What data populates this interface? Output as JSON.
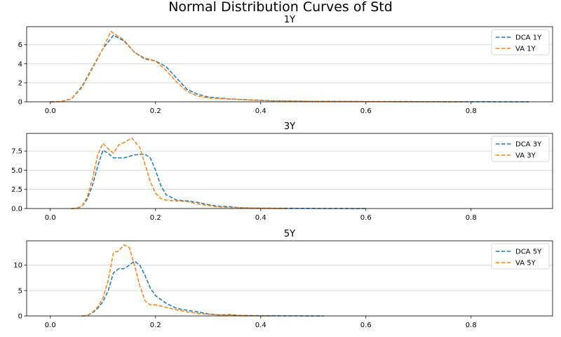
{
  "chart_data": {
    "type": "line",
    "title": "Normal Distribution Curves of Std",
    "grid": "y",
    "legend_placement": "top-right",
    "line_style": "dashed",
    "colors": {
      "DCA": "#1f77b4",
      "VA": "#ff7f0e"
    },
    "xlim": [
      -0.045,
      0.955
    ],
    "xticks": [
      "0.0",
      "0.2",
      "0.4",
      "0.6",
      "0.8"
    ],
    "panels": [
      {
        "title": "1Y",
        "ylim": [
          0,
          7.9
        ],
        "yticks": [
          "0",
          "2",
          "4",
          "6"
        ],
        "series": [
          {
            "name": "DCA 1Y",
            "color": "#1f77b4",
            "points": [
              [
                0.0,
                0
              ],
              [
                0.02,
                0.03
              ],
              [
                0.04,
                0.3
              ],
              [
                0.06,
                1.6
              ],
              [
                0.08,
                3.6
              ],
              [
                0.1,
                5.6
              ],
              [
                0.12,
                7.0
              ],
              [
                0.14,
                6.4
              ],
              [
                0.16,
                5.2
              ],
              [
                0.18,
                4.5
              ],
              [
                0.2,
                4.3
              ],
              [
                0.22,
                3.7
              ],
              [
                0.24,
                2.5
              ],
              [
                0.26,
                1.3
              ],
              [
                0.28,
                0.8
              ],
              [
                0.3,
                0.5
              ],
              [
                0.34,
                0.3
              ],
              [
                0.38,
                0.2
              ],
              [
                0.42,
                0.1
              ],
              [
                0.5,
                0.05
              ],
              [
                0.6,
                0.03
              ],
              [
                0.7,
                0.02
              ],
              [
                0.8,
                0.01
              ],
              [
                0.91,
                0.0
              ]
            ]
          },
          {
            "name": "VA 1Y",
            "color": "#ff7f0e",
            "points": [
              [
                0.0,
                0
              ],
              [
                0.02,
                0.03
              ],
              [
                0.04,
                0.3
              ],
              [
                0.06,
                1.5
              ],
              [
                0.08,
                3.5
              ],
              [
                0.1,
                5.6
              ],
              [
                0.115,
                7.4
              ],
              [
                0.14,
                6.5
              ],
              [
                0.16,
                5.2
              ],
              [
                0.18,
                4.6
              ],
              [
                0.2,
                4.3
              ],
              [
                0.22,
                3.3
              ],
              [
                0.24,
                2.1
              ],
              [
                0.26,
                1.1
              ],
              [
                0.28,
                0.6
              ],
              [
                0.3,
                0.4
              ],
              [
                0.34,
                0.3
              ],
              [
                0.38,
                0.2
              ],
              [
                0.42,
                0.1
              ],
              [
                0.5,
                0.05
              ],
              [
                0.6,
                0.02
              ],
              [
                0.7,
                0.01
              ],
              [
                0.79,
                0.0
              ]
            ]
          }
        ]
      },
      {
        "title": "3Y",
        "ylim": [
          0,
          9.8
        ],
        "yticks": [
          "0.0",
          "2.5",
          "5.0",
          "7.5"
        ],
        "series": [
          {
            "name": "DCA 3Y",
            "color": "#1f77b4",
            "points": [
              [
                0.04,
                0
              ],
              [
                0.05,
                0.05
              ],
              [
                0.06,
                0.3
              ],
              [
                0.07,
                1.2
              ],
              [
                0.08,
                3.0
              ],
              [
                0.09,
                5.5
              ],
              [
                0.1,
                7.6
              ],
              [
                0.11,
                7.2
              ],
              [
                0.12,
                6.6
              ],
              [
                0.14,
                6.6
              ],
              [
                0.16,
                7.0
              ],
              [
                0.18,
                7.1
              ],
              [
                0.19,
                6.6
              ],
              [
                0.2,
                5.0
              ],
              [
                0.21,
                3.0
              ],
              [
                0.22,
                1.8
              ],
              [
                0.24,
                1.1
              ],
              [
                0.26,
                1.0
              ],
              [
                0.28,
                0.8
              ],
              [
                0.3,
                0.5
              ],
              [
                0.32,
                0.3
              ],
              [
                0.34,
                0.25
              ],
              [
                0.36,
                0.1
              ],
              [
                0.4,
                0.05
              ],
              [
                0.5,
                0.02
              ],
              [
                0.6,
                0.0
              ]
            ]
          },
          {
            "name": "VA 3Y",
            "color": "#ff7f0e",
            "points": [
              [
                0.04,
                0
              ],
              [
                0.05,
                0.05
              ],
              [
                0.06,
                0.3
              ],
              [
                0.07,
                1.5
              ],
              [
                0.08,
                3.8
              ],
              [
                0.09,
                7.0
              ],
              [
                0.1,
                8.5
              ],
              [
                0.11,
                7.8
              ],
              [
                0.12,
                7.2
              ],
              [
                0.13,
                8.3
              ],
              [
                0.14,
                8.6
              ],
              [
                0.155,
                9.2
              ],
              [
                0.17,
                8.0
              ],
              [
                0.18,
                5.8
              ],
              [
                0.19,
                3.5
              ],
              [
                0.2,
                2.0
              ],
              [
                0.21,
                1.3
              ],
              [
                0.22,
                1.1
              ],
              [
                0.24,
                1.0
              ],
              [
                0.26,
                0.9
              ],
              [
                0.28,
                0.6
              ],
              [
                0.3,
                0.4
              ],
              [
                0.32,
                0.2
              ],
              [
                0.36,
                0.1
              ],
              [
                0.4,
                0.05
              ],
              [
                0.45,
                0.0
              ]
            ]
          }
        ]
      },
      {
        "title": "5Y",
        "ylim": [
          0,
          14.8
        ],
        "yticks": [
          "0",
          "5",
          "10"
        ],
        "series": [
          {
            "name": "DCA 5Y",
            "color": "#1f77b4",
            "points": [
              [
                0.06,
                0
              ],
              [
                0.07,
                0.1
              ],
              [
                0.08,
                0.6
              ],
              [
                0.09,
                1.5
              ],
              [
                0.1,
                2.8
              ],
              [
                0.11,
                5.0
              ],
              [
                0.12,
                8.5
              ],
              [
                0.13,
                9.3
              ],
              [
                0.14,
                9.3
              ],
              [
                0.15,
                10.0
              ],
              [
                0.16,
                10.8
              ],
              [
                0.17,
                10.0
              ],
              [
                0.18,
                8.0
              ],
              [
                0.19,
                5.5
              ],
              [
                0.2,
                4.0
              ],
              [
                0.22,
                2.5
              ],
              [
                0.24,
                1.5
              ],
              [
                0.26,
                1.1
              ],
              [
                0.28,
                0.8
              ],
              [
                0.3,
                0.4
              ],
              [
                0.32,
                0.2
              ],
              [
                0.34,
                0.25
              ],
              [
                0.36,
                0.1
              ],
              [
                0.4,
                0.05
              ],
              [
                0.45,
                0.02
              ],
              [
                0.52,
                0.0
              ]
            ]
          },
          {
            "name": "VA 5Y",
            "color": "#ff7f0e",
            "points": [
              [
                0.06,
                0
              ],
              [
                0.07,
                0.1
              ],
              [
                0.08,
                0.7
              ],
              [
                0.09,
                1.8
              ],
              [
                0.1,
                3.5
              ],
              [
                0.11,
                7.0
              ],
              [
                0.12,
                12.5
              ],
              [
                0.13,
                12.8
              ],
              [
                0.14,
                14.0
              ],
              [
                0.15,
                13.5
              ],
              [
                0.16,
                10.0
              ],
              [
                0.17,
                6.0
              ],
              [
                0.18,
                3.0
              ],
              [
                0.19,
                2.2
              ],
              [
                0.2,
                2.2
              ],
              [
                0.22,
                1.7
              ],
              [
                0.24,
                1.2
              ],
              [
                0.26,
                0.8
              ],
              [
                0.28,
                0.5
              ],
              [
                0.3,
                0.3
              ],
              [
                0.34,
                0.15
              ],
              [
                0.38,
                0.05
              ],
              [
                0.42,
                0.0
              ]
            ]
          }
        ]
      }
    ]
  }
}
